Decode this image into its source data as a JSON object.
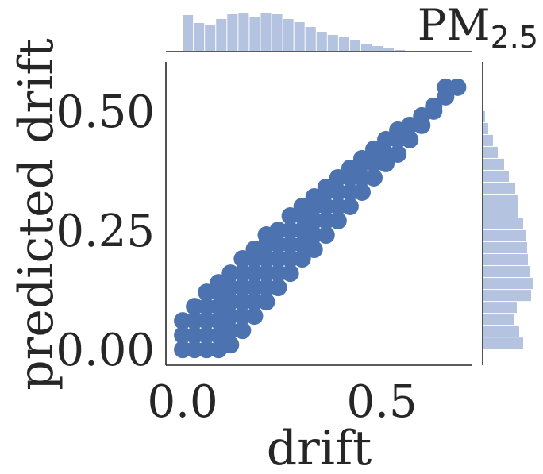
{
  "chart_data": {
    "type": "scatter",
    "title": {
      "main": "PM",
      "subscript": "2.5"
    },
    "xlabel": "drift",
    "ylabel": "predicted drift",
    "color": "#4c72b0",
    "xlim": [
      -0.042,
      0.727
    ],
    "ylim": [
      -0.033,
      0.603
    ],
    "xticks": [
      {
        "value": 0,
        "label": "0.0"
      },
      {
        "value": 0.5,
        "label": "0.5"
      }
    ],
    "yticks": [
      {
        "value": 0,
        "label": "0.00"
      },
      {
        "value": 0.25,
        "label": "0.25"
      },
      {
        "value": 0.5,
        "label": "0.50"
      }
    ],
    "grid": false,
    "x": [
      0,
      0,
      0,
      0.03,
      0.03,
      0.03,
      0.03,
      0.06,
      0.06,
      0.06,
      0.06,
      0.06,
      0.09,
      0.09,
      0.09,
      0.09,
      0.09,
      0.09,
      0.12,
      0.12,
      0.12,
      0.12,
      0.12,
      0.12,
      0.15,
      0.15,
      0.15,
      0.15,
      0.15,
      0.15,
      0.18,
      0.18,
      0.18,
      0.18,
      0.18,
      0.18,
      0.21,
      0.21,
      0.21,
      0.21,
      0.21,
      0.21,
      0.24,
      0.24,
      0.24,
      0.24,
      0.24,
      0.27,
      0.27,
      0.27,
      0.27,
      0.27,
      0.3,
      0.3,
      0.3,
      0.3,
      0.3,
      0.33,
      0.33,
      0.33,
      0.33,
      0.33,
      0.36,
      0.36,
      0.36,
      0.36,
      0.36,
      0.39,
      0.39,
      0.39,
      0.39,
      0.42,
      0.42,
      0.42,
      0.42,
      0.45,
      0.45,
      0.45,
      0.45,
      0.48,
      0.48,
      0.48,
      0.51,
      0.51,
      0.51,
      0.54,
      0.54,
      0.54,
      0.57,
      0.57,
      0.6,
      0.6,
      0.63,
      0.63,
      0.66,
      0.66,
      0.69
    ],
    "y": [
      0,
      0.03,
      0.06,
      0,
      0.03,
      0.06,
      0.09,
      0,
      0.03,
      0.06,
      0.09,
      0.12,
      0,
      0.03,
      0.06,
      0.09,
      0.12,
      0.14,
      0.01,
      0.04,
      0.07,
      0.1,
      0.13,
      0.16,
      0.04,
      0.07,
      0.1,
      0.13,
      0.16,
      0.19,
      0.07,
      0.1,
      0.13,
      0.16,
      0.19,
      0.21,
      0.1,
      0.13,
      0.16,
      0.19,
      0.22,
      0.24,
      0.13,
      0.16,
      0.19,
      0.22,
      0.25,
      0.16,
      0.19,
      0.22,
      0.25,
      0.28,
      0.19,
      0.22,
      0.25,
      0.28,
      0.3,
      0.21,
      0.24,
      0.27,
      0.3,
      0.32,
      0.24,
      0.27,
      0.3,
      0.33,
      0.34,
      0.27,
      0.3,
      0.33,
      0.36,
      0.3,
      0.33,
      0.36,
      0.38,
      0.33,
      0.36,
      0.39,
      0.4,
      0.36,
      0.39,
      0.42,
      0.39,
      0.41,
      0.44,
      0.41,
      0.44,
      0.46,
      0.44,
      0.47,
      0.47,
      0.49,
      0.5,
      0.51,
      0.53,
      0.55,
      0.55
    ],
    "hist_color": "#b3c3e0",
    "hist_x": {
      "bins": [
        0,
        0.028,
        0.056,
        0.084,
        0.112,
        0.14,
        0.168,
        0.196,
        0.224,
        0.252,
        0.28,
        0.308,
        0.336,
        0.364,
        0.392,
        0.42,
        0.448,
        0.476,
        0.504,
        0.532,
        0.56
      ],
      "counts": [
        45,
        35,
        32,
        40,
        46,
        47,
        42,
        48,
        46,
        40,
        36,
        30,
        24,
        20,
        17,
        13,
        9,
        6,
        3,
        1
      ]
    },
    "hist_y": {
      "bins": [
        0,
        0.025,
        0.05,
        0.075,
        0.1,
        0.125,
        0.15,
        0.175,
        0.2,
        0.225,
        0.25,
        0.275,
        0.3,
        0.325,
        0.35,
        0.375,
        0.4,
        0.425,
        0.45,
        0.475,
        0.5
      ],
      "counts": [
        50,
        45,
        38,
        42,
        60,
        62,
        58,
        56,
        55,
        54,
        50,
        44,
        44,
        40,
        32,
        26,
        18,
        12,
        6,
        2
      ]
    }
  }
}
